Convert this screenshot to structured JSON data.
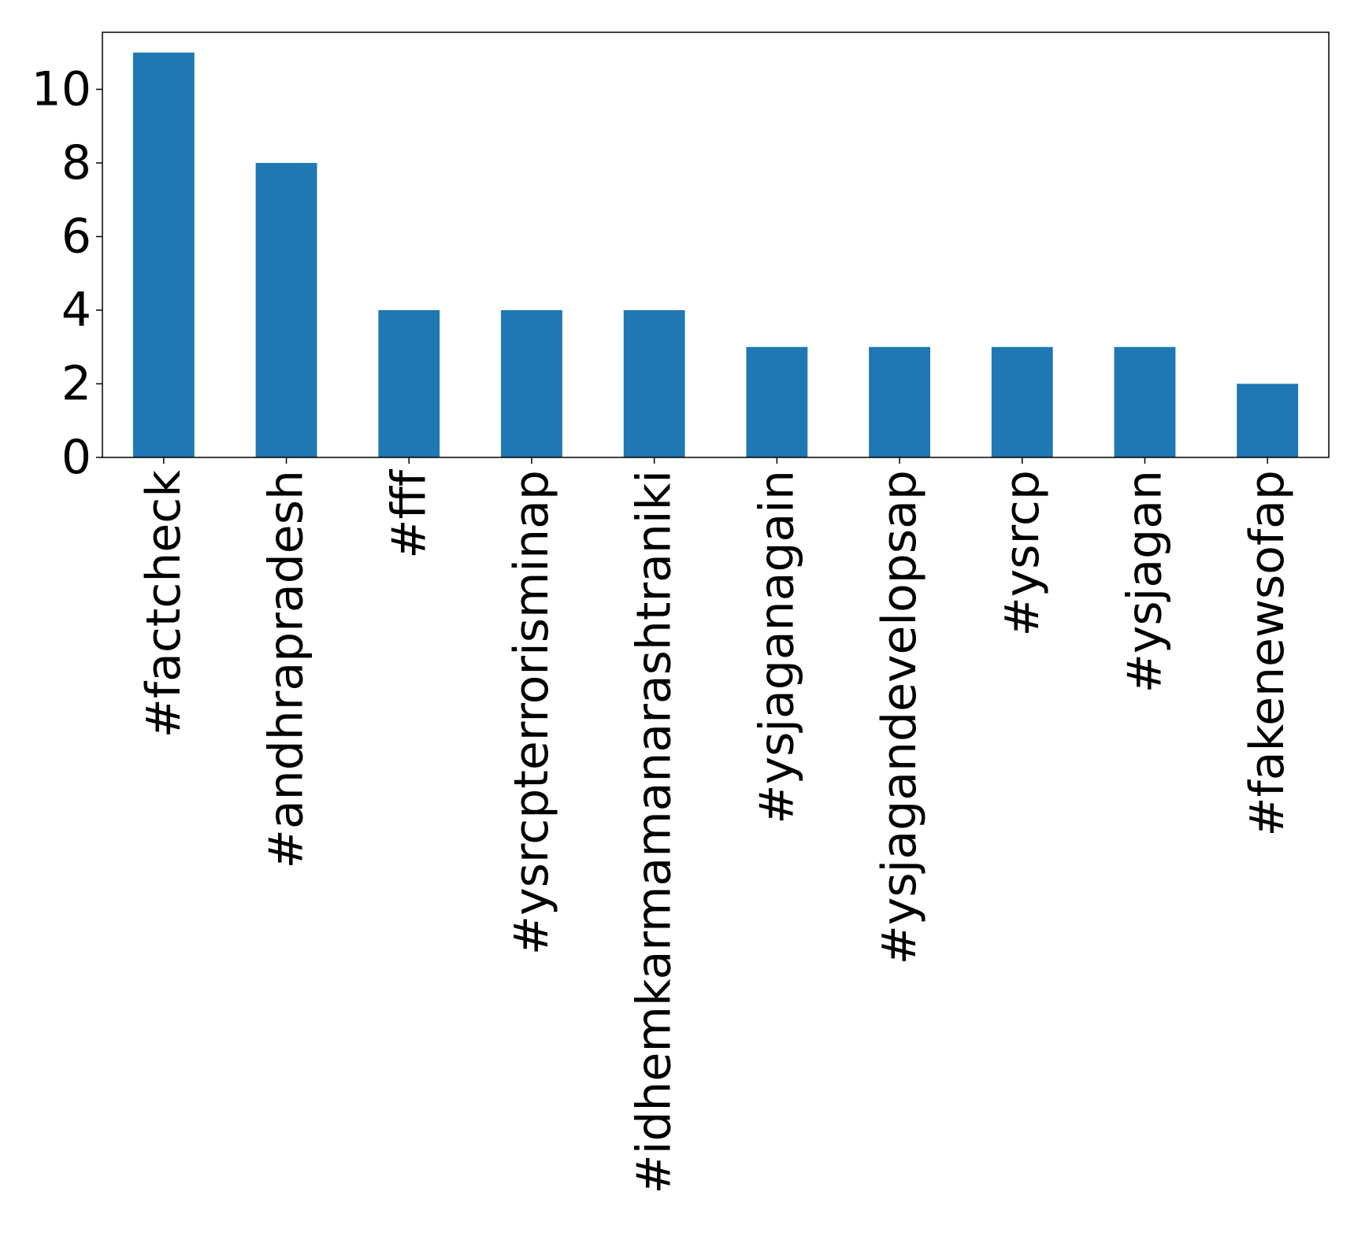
{
  "chart_data": {
    "type": "bar",
    "title": "",
    "xlabel": "",
    "ylabel": "",
    "categories": [
      "#factcheck",
      "#andhrapradesh",
      "#fff",
      "#ysrcpterrorisminap",
      "#idhemkarmamanarashtraniki",
      "#ysjaganagain",
      "#ysjagandevelopsap",
      "#ysrcp",
      "#ysjagan",
      "#fakenewsofap"
    ],
    "values": [
      11,
      8,
      4,
      4,
      4,
      3,
      3,
      3,
      3,
      2
    ],
    "ylim": [
      0,
      11.55
    ],
    "yticks": [
      0,
      2,
      4,
      6,
      8,
      10
    ],
    "bar_color": "#1f77b4",
    "grid": false,
    "legend": "none"
  }
}
